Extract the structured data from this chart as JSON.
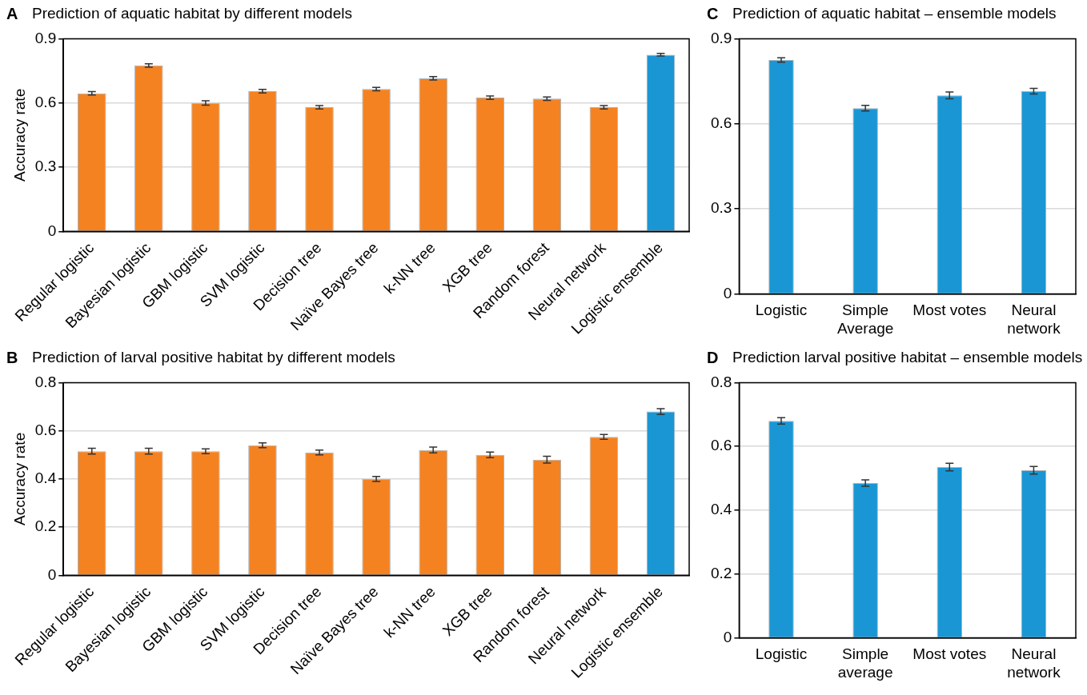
{
  "chart_data": [
    {
      "type": "bar",
      "title": "Prediction of aquatic habitat by different models",
      "annotations": [
        "A"
      ],
      "ylabel": "Accuracy rate",
      "categories": [
        "Regular logistic",
        "Bayesian logistic",
        "GBM logistic",
        "SVM logistic",
        "Decision tree",
        "Naïve Bayes tree",
        "k-NN tree",
        "XGB tree",
        "Random forest",
        "Neural network",
        "Logistic ensemble"
      ],
      "values": [
        0.645,
        0.775,
        0.6,
        0.655,
        0.58,
        0.665,
        0.715,
        0.625,
        0.62,
        0.58,
        0.825
      ],
      "errors": [
        0.008,
        0.008,
        0.01,
        0.008,
        0.008,
        0.008,
        0.008,
        0.008,
        0.008,
        0.008,
        0.006
      ],
      "colors": [
        "#f58220",
        "#f58220",
        "#f58220",
        "#f58220",
        "#f58220",
        "#f58220",
        "#f58220",
        "#f58220",
        "#f58220",
        "#f58220",
        "#1a96d4"
      ],
      "ylim": [
        0,
        0.9
      ],
      "yticks": [
        0,
        0.3,
        0.6,
        0.9
      ],
      "grid": "y"
    },
    {
      "type": "bar",
      "title": "Prediction of aquatic habitat – ensemble models",
      "annotations": [
        "C"
      ],
      "categories": [
        "Logistic",
        "Simple Average",
        "Most votes",
        "Neural network"
      ],
      "values": [
        0.825,
        0.655,
        0.7,
        0.715
      ],
      "errors": [
        0.008,
        0.01,
        0.012,
        0.01
      ],
      "colors": [
        "#1a96d4",
        "#1a96d4",
        "#1a96d4",
        "#1a96d4"
      ],
      "ylim": [
        0,
        0.9
      ],
      "yticks": [
        0,
        0.3,
        0.6,
        0.9
      ],
      "grid": "y"
    },
    {
      "type": "bar",
      "title": "Prediction of larval positive habitat by different models",
      "annotations": [
        "B"
      ],
      "ylabel": "Accuracy rate",
      "categories": [
        "Regular logistic",
        "Bayesian logistic",
        "GBM logistic",
        "SVM logistic",
        "Decision tree",
        "Naïve Bayes tree",
        "k-NN tree",
        "XGB tree",
        "Random forest",
        "Neural network",
        "Logistic ensemble"
      ],
      "values": [
        0.515,
        0.515,
        0.515,
        0.54,
        0.51,
        0.4,
        0.52,
        0.5,
        0.48,
        0.575,
        0.68
      ],
      "errors": [
        0.012,
        0.012,
        0.01,
        0.01,
        0.01,
        0.01,
        0.012,
        0.012,
        0.014,
        0.01,
        0.012
      ],
      "colors": [
        "#f58220",
        "#f58220",
        "#f58220",
        "#f58220",
        "#f58220",
        "#f58220",
        "#f58220",
        "#f58220",
        "#f58220",
        "#f58220",
        "#1a96d4"
      ],
      "ylim": [
        0,
        0.8
      ],
      "yticks": [
        0,
        0.2,
        0.4,
        0.6,
        0.8
      ],
      "grid": "y"
    },
    {
      "type": "bar",
      "title": "Prediction larval positive habitat – ensemble models",
      "annotations": [
        "D"
      ],
      "categories": [
        "Logistic",
        "Simple average",
        "Most votes",
        "Neural network"
      ],
      "values": [
        0.68,
        0.485,
        0.535,
        0.525
      ],
      "errors": [
        0.01,
        0.01,
        0.012,
        0.012
      ],
      "colors": [
        "#1a96d4",
        "#1a96d4",
        "#1a96d4",
        "#1a96d4"
      ],
      "ylim": [
        0,
        0.8
      ],
      "yticks": [
        0,
        0.2,
        0.4,
        0.6,
        0.8
      ],
      "grid": "y"
    }
  ]
}
